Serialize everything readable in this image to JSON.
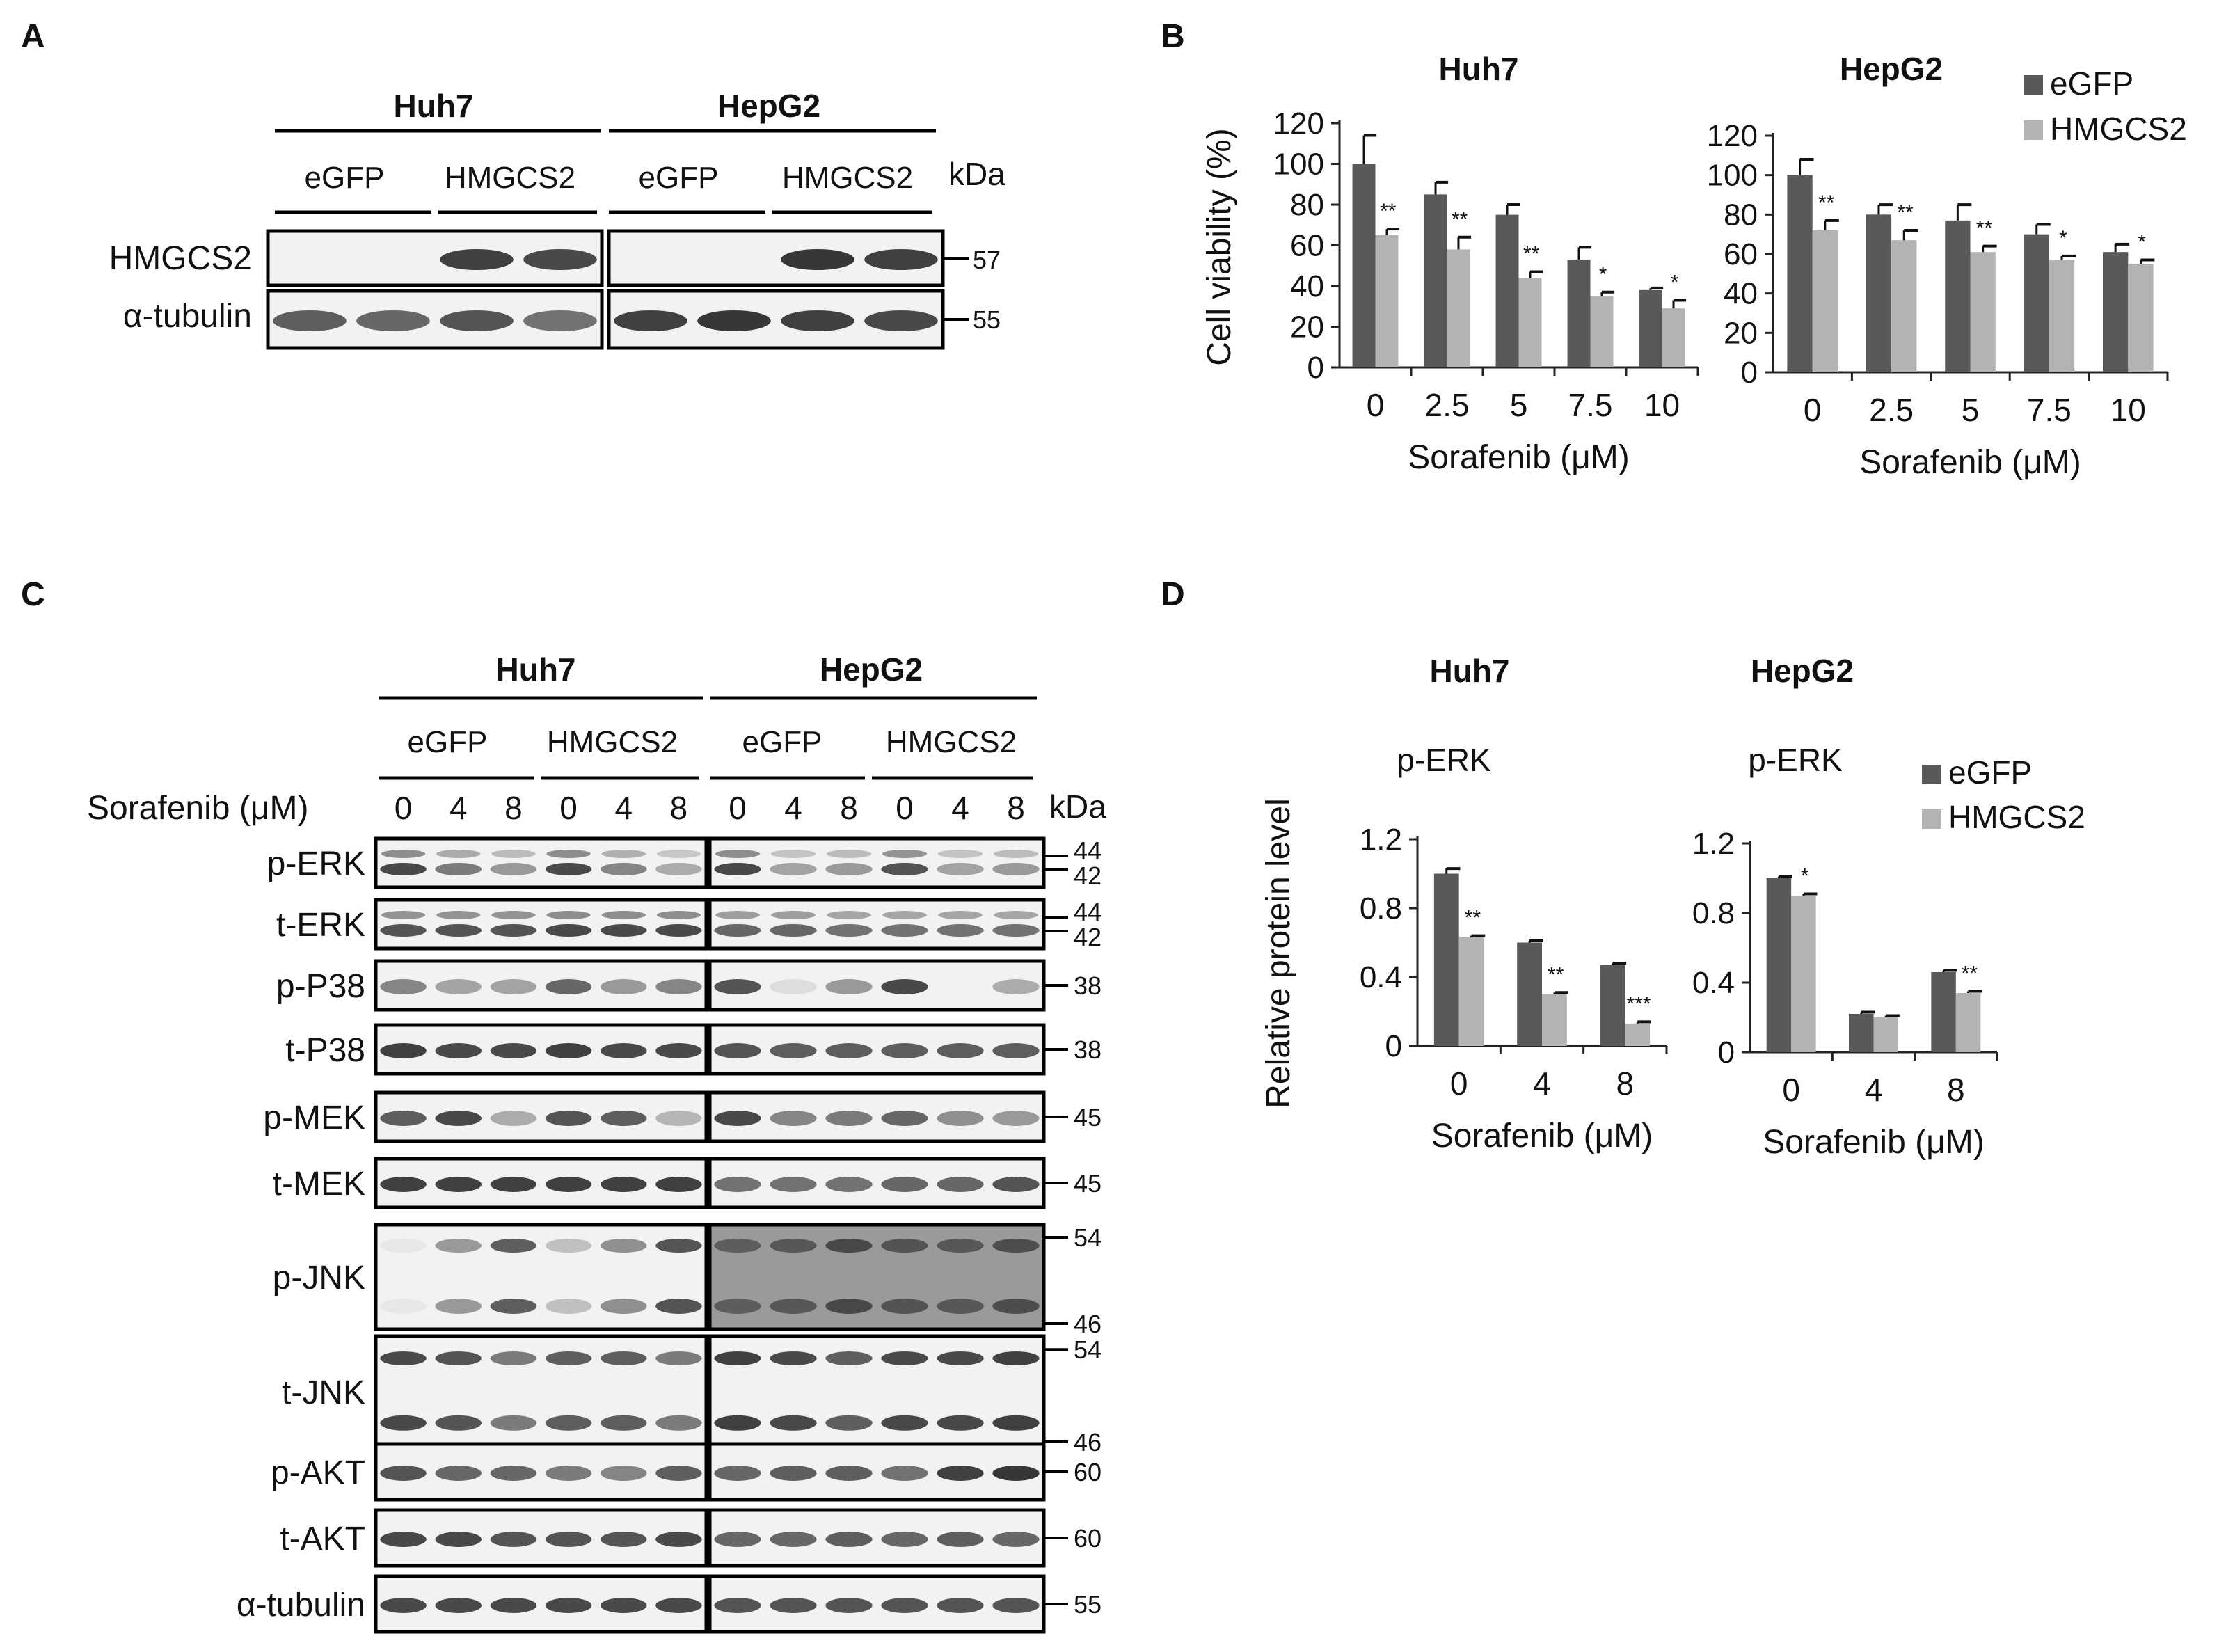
{
  "panel_letters": [
    "A",
    "B",
    "C",
    "D"
  ],
  "colors": {
    "egfp": "#595959",
    "hmgcs2": "#b3b3b3",
    "text": "#111111",
    "blot_bg": "#f2f2f2",
    "band": "#2c2c2c"
  },
  "panel_a": {
    "cell_lines": [
      "Huh7",
      "HepG2"
    ],
    "groups": [
      "eGFP",
      "HMGCS2",
      "eGFP",
      "HMGCS2"
    ],
    "kda_label": "kDa",
    "rows": [
      {
        "label": "HMGCS2",
        "kda": "57",
        "bands": [
          0.0,
          0.0,
          0.9,
          0.85,
          0.0,
          0.0,
          0.95,
          0.9
        ]
      },
      {
        "label": "α-tubulin",
        "kda": "55",
        "bands": [
          0.75,
          0.7,
          0.8,
          0.65,
          0.9,
          0.95,
          0.9,
          0.85
        ]
      }
    ]
  },
  "panel_b": {
    "xlabel": "Sorafenib (μM)",
    "ylabel": "Cell viability (%)",
    "legend": [
      "eGFP",
      "HMGCS2"
    ],
    "chart_data": [
      {
        "type": "bar",
        "title": "Huh7",
        "categories": [
          "0",
          "2.5",
          "5",
          "7.5",
          "10"
        ],
        "series": [
          {
            "name": "eGFP",
            "values": [
              100,
              85,
              75,
              53,
              38
            ],
            "errors": [
              14,
              6,
              5,
              6,
              1
            ]
          },
          {
            "name": "HMGCS2",
            "values": [
              65,
              58,
              44,
              35,
              29
            ],
            "errors": [
              3,
              6,
              3,
              2,
              4
            ]
          }
        ],
        "significance": [
          "**",
          "**",
          "**",
          "*",
          "*"
        ],
        "yticks": [
          "0",
          "20",
          "40",
          "60",
          "80",
          "100",
          "120"
        ],
        "ylim": [
          0,
          120
        ]
      },
      {
        "type": "bar",
        "title": "HepG2",
        "categories": [
          "0",
          "2.5",
          "5",
          "7.5",
          "10"
        ],
        "series": [
          {
            "name": "eGFP",
            "values": [
              100,
              80,
              77,
              70,
              61
            ],
            "errors": [
              8,
              5,
              8,
              5,
              4
            ]
          },
          {
            "name": "HMGCS2",
            "values": [
              72,
              67,
              61,
              57,
              55
            ],
            "errors": [
              5,
              5,
              3,
              2,
              2
            ]
          }
        ],
        "significance": [
          "**",
          "**",
          "**",
          "*",
          "*"
        ],
        "yticks": [
          "0",
          "20",
          "40",
          "60",
          "80",
          "100",
          "120"
        ],
        "ylim": [
          0,
          120
        ]
      }
    ]
  },
  "panel_c": {
    "cell_lines": [
      "Huh7",
      "HepG2"
    ],
    "groups": [
      "eGFP",
      "HMGCS2",
      "eGFP",
      "HMGCS2"
    ],
    "dose_label": "Sorafenib (μM)",
    "doses": [
      "0",
      "4",
      "8",
      "0",
      "4",
      "8",
      "0",
      "4",
      "8",
      "0",
      "4",
      "8"
    ],
    "kda_label": "kDa",
    "rows": [
      {
        "label": "p-ERK",
        "kda": [
          "44",
          "42"
        ],
        "bands": [
          0.85,
          0.6,
          0.45,
          0.85,
          0.55,
          0.35,
          0.85,
          0.4,
          0.45,
          0.8,
          0.4,
          0.45
        ]
      },
      {
        "label": "t-ERK",
        "kda": [
          "44",
          "42"
        ],
        "bands": [
          0.8,
          0.8,
          0.8,
          0.85,
          0.85,
          0.85,
          0.7,
          0.7,
          0.65,
          0.65,
          0.65,
          0.65
        ]
      },
      {
        "label": "p-P38",
        "kda": [
          "38"
        ],
        "bands": [
          0.55,
          0.4,
          0.4,
          0.7,
          0.45,
          0.55,
          0.8,
          0.1,
          0.45,
          0.85,
          0.0,
          0.35
        ]
      },
      {
        "label": "t-P38",
        "kda": [
          "38"
        ],
        "bands": [
          0.9,
          0.85,
          0.85,
          0.9,
          0.85,
          0.85,
          0.8,
          0.75,
          0.75,
          0.75,
          0.75,
          0.75
        ]
      },
      {
        "label": "p-MEK",
        "kda": [
          "45"
        ],
        "bands": [
          0.75,
          0.85,
          0.35,
          0.8,
          0.75,
          0.3,
          0.85,
          0.55,
          0.6,
          0.7,
          0.5,
          0.45
        ]
      },
      {
        "label": "t-MEK",
        "kda": [
          "45"
        ],
        "bands": [
          0.9,
          0.9,
          0.9,
          0.9,
          0.9,
          0.9,
          0.65,
          0.65,
          0.65,
          0.7,
          0.7,
          0.8
        ]
      },
      {
        "label": "p-JNK",
        "kda": [
          "54",
          "46"
        ],
        "bands": [
          0.05,
          0.45,
          0.75,
          0.25,
          0.5,
          0.8,
          0.55,
          0.6,
          0.75,
          0.65,
          0.6,
          0.7
        ]
      },
      {
        "label": "t-JNK",
        "kda": [
          "54",
          "46"
        ],
        "bands": [
          0.85,
          0.8,
          0.6,
          0.75,
          0.75,
          0.6,
          0.9,
          0.85,
          0.75,
          0.85,
          0.85,
          0.9
        ]
      },
      {
        "label": "p-AKT",
        "kda": [
          "60"
        ],
        "bands": [
          0.8,
          0.7,
          0.7,
          0.6,
          0.55,
          0.75,
          0.7,
          0.75,
          0.75,
          0.65,
          0.9,
          0.95
        ]
      },
      {
        "label": "t-AKT",
        "kda": [
          "60"
        ],
        "bands": [
          0.85,
          0.85,
          0.8,
          0.8,
          0.8,
          0.85,
          0.7,
          0.7,
          0.75,
          0.7,
          0.75,
          0.7
        ]
      },
      {
        "label": "α-tubulin",
        "kda": [
          "55"
        ],
        "bands": [
          0.85,
          0.85,
          0.85,
          0.85,
          0.85,
          0.85,
          0.8,
          0.8,
          0.8,
          0.8,
          0.8,
          0.8
        ]
      }
    ]
  },
  "panel_d": {
    "xlabel": "Sorafenib (μM)",
    "ylabel": "Relative protein level",
    "legend": [
      "eGFP",
      "HMGCS2"
    ],
    "chart_data": [
      {
        "type": "bar",
        "title": "Huh7",
        "subtitle": "p-ERK",
        "categories": [
          "0",
          "4",
          "8"
        ],
        "series": [
          {
            "name": "eGFP",
            "values": [
              1.0,
              0.6,
              0.47
            ],
            "errors": [
              0.03,
              0.01,
              0.01
            ]
          },
          {
            "name": "HMGCS2",
            "values": [
              0.63,
              0.3,
              0.13
            ],
            "errors": [
              0.01,
              0.01,
              0.01
            ]
          }
        ],
        "significance": [
          "**",
          "**",
          "***"
        ],
        "yticks": [
          "0",
          "0.4",
          "0.8",
          "1.2"
        ],
        "ylim": [
          0,
          1.2
        ]
      },
      {
        "type": "bar",
        "title": "HepG2",
        "subtitle": "p-ERK",
        "categories": [
          "0",
          "4",
          "8"
        ],
        "series": [
          {
            "name": "eGFP",
            "values": [
              1.0,
              0.22,
              0.46
            ],
            "errors": [
              0.01,
              0.01,
              0.01
            ]
          },
          {
            "name": "HMGCS2",
            "values": [
              0.9,
              0.2,
              0.34
            ],
            "errors": [
              0.01,
              0.01,
              0.01
            ]
          }
        ],
        "significance": [
          "*",
          "",
          "**"
        ],
        "yticks": [
          "0",
          "0.4",
          "0.8",
          "1.2"
        ],
        "ylim": [
          0,
          1.2
        ]
      }
    ]
  }
}
